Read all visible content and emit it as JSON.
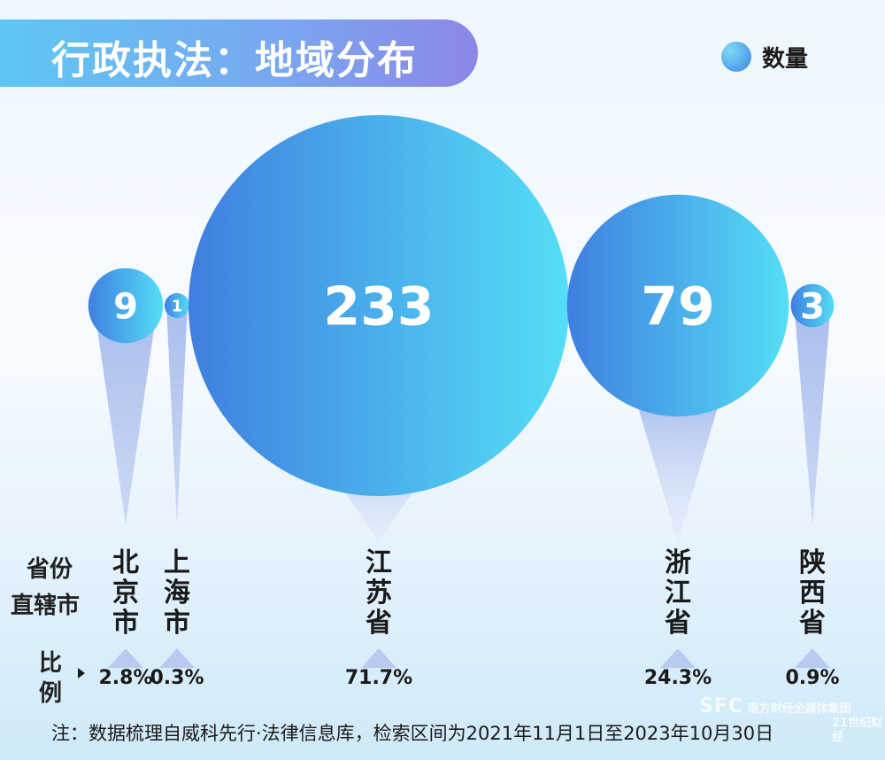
{
  "title": "行政执法：地域分布",
  "legend": {
    "label": "数量"
  },
  "axis_heads": {
    "region_top": "省份",
    "region_bottom": "直辖市",
    "ratio_top": "比",
    "ratio_bottom": "例"
  },
  "footnote": "注：数据梳理自威科先行·法律信息库，检索区间为2021年11月1日至2023年10月30日",
  "watermark": {
    "brand": "SFC",
    "org": "南方财经全媒体集团",
    "sub": "21世纪财经"
  },
  "colors": {
    "bubble_start": "#3f7fe0",
    "bubble_end": "#55def6",
    "cone": "#9fb6ea"
  },
  "chart_data": {
    "type": "bubble",
    "categories": [
      "北京市",
      "上海市",
      "江苏省",
      "浙江省",
      "陕西省"
    ],
    "values": [
      9,
      1,
      233,
      79,
      3
    ],
    "ratios": [
      "2.8%",
      "0.3%",
      "71.7%",
      "24.3%",
      "0.9%"
    ]
  }
}
